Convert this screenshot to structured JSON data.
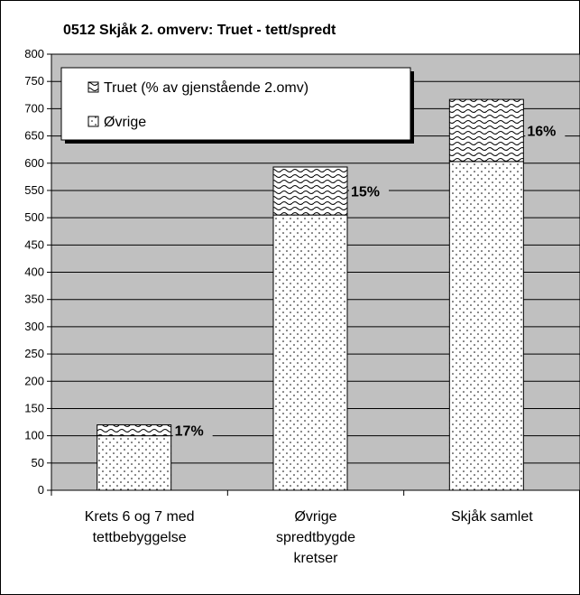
{
  "chart_data": {
    "type": "stacked_bar",
    "title": "0512 Skjåk 2. omverv: Truet - tett/spredt",
    "categories": [
      "Krets 6 og 7 med\ntettbebyggelse",
      "Øvrige\nspredtbygde\nkretser",
      "Skjåk samlet"
    ],
    "series": [
      {
        "name": "Øvrige",
        "color": "#ffffff",
        "pattern": "dots",
        "values": [
          100,
          505,
          603
        ]
      },
      {
        "name": "Truet (% av gjenstående 2.omv)",
        "color": "#ffffff",
        "pattern": "waves",
        "values": [
          20,
          88,
          114
        ]
      }
    ],
    "annotations": [
      "17%",
      "15%",
      "16%"
    ],
    "ylim": [
      0,
      800
    ],
    "yticks": [
      0,
      50,
      100,
      150,
      200,
      250,
      300,
      350,
      400,
      450,
      500,
      550,
      600,
      650,
      700,
      750,
      800
    ],
    "grid": true,
    "legend": "top-left",
    "plot_background": "#c0c0c0"
  }
}
